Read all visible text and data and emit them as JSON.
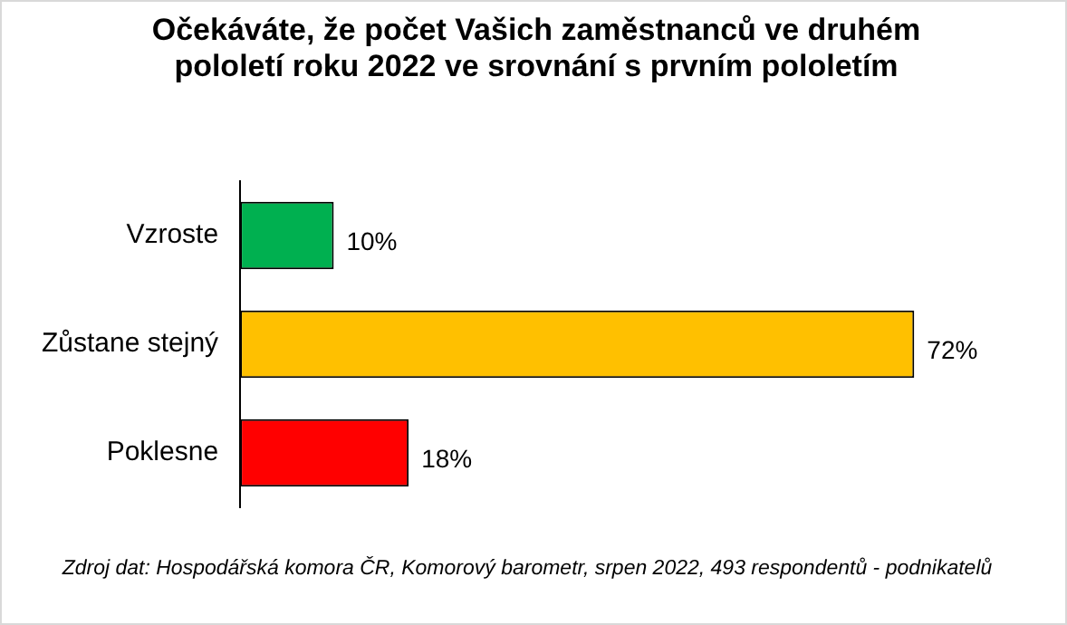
{
  "chart_data": {
    "type": "bar",
    "orientation": "horizontal",
    "title": "Očekáváte, že počet Vašich zaměstnanců ve druhém pololetí roku 2022 ve srovnání s prvním pololetím",
    "categories": [
      "Vzroste",
      "Zůstane stejný",
      "Poklesne"
    ],
    "values": [
      10,
      72,
      18
    ],
    "colors": [
      "#00b050",
      "#ffc000",
      "#ff0000"
    ],
    "value_labels": [
      "10%",
      "72%",
      "18%"
    ],
    "legend": false,
    "tick_labels": "y",
    "annotations": [
      "Zdroj dat: Hospodářská komora ČR, Komorový barometr, srpen 2022, 493 respondentů - podnikatelů"
    ]
  }
}
